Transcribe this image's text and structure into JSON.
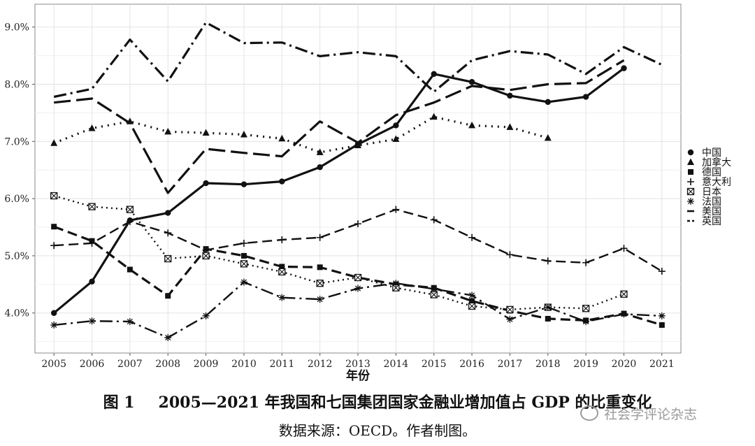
{
  "chart_data": {
    "type": "line",
    "title": "",
    "xlabel": "年份",
    "ylabel": "",
    "x": [
      2005,
      2006,
      2007,
      2008,
      2009,
      2010,
      2011,
      2012,
      2013,
      2014,
      2015,
      2016,
      2017,
      2018,
      2019,
      2020,
      2021
    ],
    "y_ticks": [
      "4.0%",
      "5.0%",
      "6.0%",
      "7.0%",
      "8.0%",
      "9.0%"
    ],
    "y_tick_values": [
      4.0,
      5.0,
      6.0,
      7.0,
      8.0,
      9.0
    ],
    "ylim": [
      3.3,
      9.4
    ],
    "xlim": [
      2004.5,
      2021.5
    ],
    "grid": true,
    "legend_position": "right",
    "series": [
      {
        "name": "中国",
        "marker": "circle",
        "dash": "solid",
        "width": 3.2,
        "values": [
          4.0,
          4.55,
          5.62,
          5.75,
          6.27,
          6.25,
          6.3,
          6.55,
          6.95,
          7.28,
          8.18,
          8.04,
          7.8,
          7.69,
          7.78,
          8.28,
          null
        ]
      },
      {
        "name": "加拿大",
        "marker": "triangle",
        "dash": "2,7",
        "width": 3.2,
        "values": [
          6.97,
          7.23,
          7.35,
          7.17,
          7.15,
          7.12,
          7.05,
          6.81,
          6.93,
          7.04,
          7.43,
          7.28,
          7.25,
          7.06,
          null,
          null,
          null
        ]
      },
      {
        "name": "德国",
        "marker": "square",
        "dash": "14,7",
        "width": 3.2,
        "values": [
          5.51,
          5.26,
          4.76,
          4.3,
          5.12,
          5.0,
          4.81,
          4.8,
          4.62,
          4.5,
          4.44,
          4.21,
          4.04,
          3.9,
          3.87,
          3.99,
          3.79
        ]
      },
      {
        "name": "意大利",
        "marker": "plus",
        "dash": "14,7",
        "width": 2.4,
        "values": [
          5.18,
          5.22,
          5.6,
          5.4,
          5.1,
          5.22,
          5.28,
          5.32,
          5.56,
          5.81,
          5.63,
          5.32,
          5.02,
          4.91,
          4.88,
          5.13,
          4.73
        ]
      },
      {
        "name": "日本",
        "marker": "boxx",
        "dash": "2,5",
        "width": 2.4,
        "values": [
          6.05,
          5.86,
          5.81,
          4.95,
          5.0,
          4.86,
          4.72,
          4.52,
          4.62,
          4.44,
          4.32,
          4.12,
          4.06,
          4.1,
          4.08,
          4.33,
          null
        ]
      },
      {
        "name": "法国",
        "marker": "star",
        "dash": "18,6,3,6",
        "width": 2.4,
        "values": [
          3.79,
          3.86,
          3.85,
          3.57,
          3.95,
          4.54,
          4.27,
          4.24,
          4.43,
          4.52,
          4.42,
          4.31,
          3.89,
          4.1,
          3.85,
          3.98,
          3.95
        ]
      },
      {
        "name": "美国",
        "marker": "none",
        "dash": "24,8",
        "width": 3.2,
        "values": [
          7.68,
          7.75,
          7.32,
          6.1,
          6.87,
          6.8,
          6.74,
          7.35,
          6.98,
          7.46,
          7.68,
          7.97,
          7.9,
          8.0,
          8.02,
          8.42,
          null
        ]
      },
      {
        "name": "英国",
        "marker": "none",
        "dash": "18,6,3,6",
        "width": 3.2,
        "values": [
          7.78,
          7.92,
          8.78,
          8.05,
          9.08,
          8.72,
          8.73,
          8.49,
          8.56,
          8.49,
          7.87,
          8.42,
          8.58,
          8.52,
          8.18,
          8.65,
          8.34
        ]
      }
    ]
  },
  "caption": {
    "figure_number": "图 1",
    "title": "2005—2021 年我国和七国集团国家金融业增加值占 GDP 的比重变化"
  },
  "source_note": "数据来源：OECD。作者制图。",
  "watermark": "社会学评论杂志"
}
